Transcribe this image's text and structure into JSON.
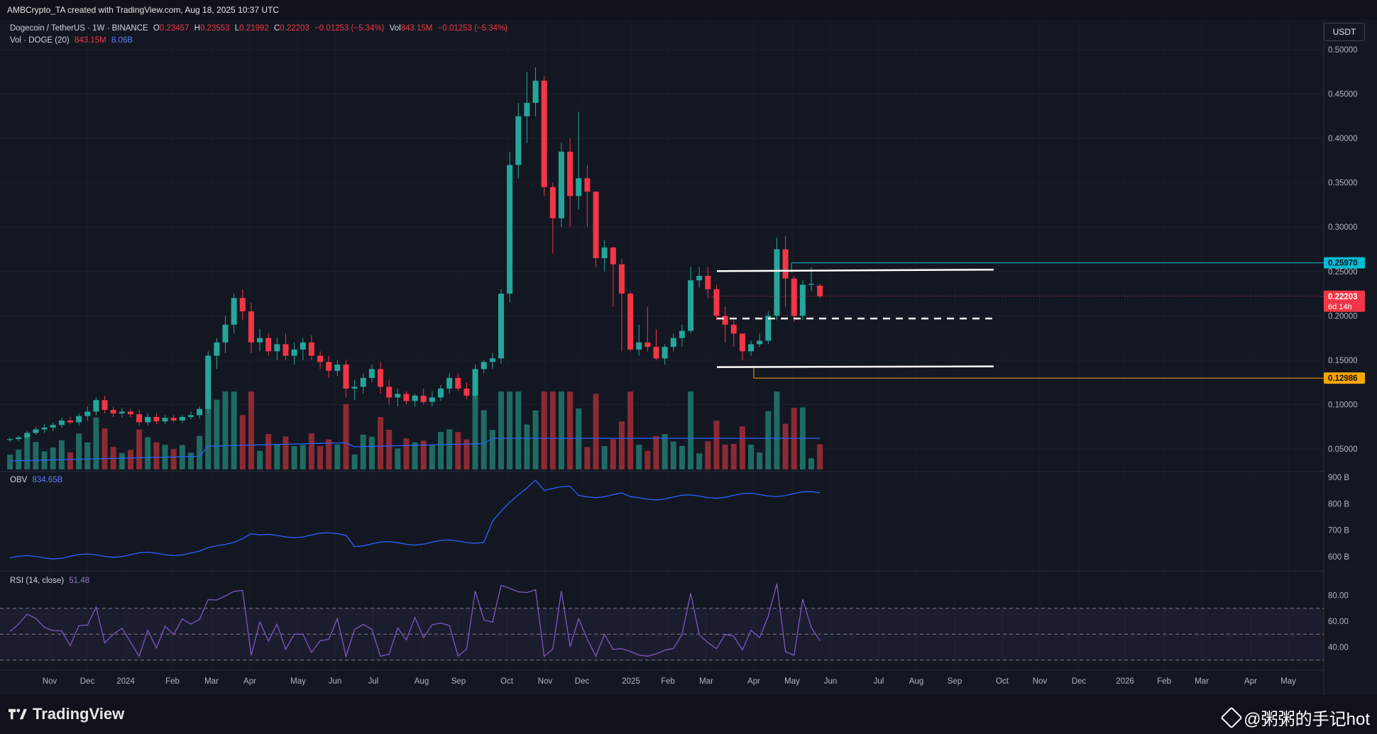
{
  "header": {
    "credit": "AMBCrypto_TA created with TradingView.com, Aug 18, 2025 10:37 UTC"
  },
  "legend": {
    "symbol": "Dogecoin / TetherUS · 1W · BINANCE",
    "o_label": "O",
    "o_val": "0.23457",
    "h_label": "H",
    "h_val": "0.23553",
    "l_label": "L",
    "l_val": "0.21992",
    "c_label": "C",
    "c_val": "0.22203",
    "change": "−0.01253 (−5.34%)",
    "vol_label": "Vol",
    "vol_val": "843.15M",
    "vol_change": "−0.01253 (−5.34%)",
    "vol_line": "Vol · DOGE (20)",
    "vol_line_v1": "843.15M",
    "vol_line_v2": "8.06B",
    "obv_label": "OBV",
    "obv_val": "834.65B",
    "rsi_label": "RSI (14, close)",
    "rsi_val": "51.48"
  },
  "toolbar": {
    "currency": "USDT"
  },
  "price_axis": {
    "labels": [
      "0.50000",
      "0.45000",
      "0.40000",
      "0.35000",
      "0.30000",
      "0.25000",
      "0.20000",
      "0.15000",
      "0.10000",
      "0.05000"
    ],
    "tag_resistance": "0.25970",
    "tag_last": "0.22203",
    "tag_countdown": "6d 14h",
    "tag_support": "0.12986"
  },
  "obv_axis": {
    "labels": [
      "900 B",
      "800 B",
      "700 B",
      "600 B"
    ]
  },
  "rsi_axis": {
    "labels": [
      "80.00",
      "60.00",
      "40.00"
    ]
  },
  "time_axis": {
    "labels": [
      "Nov",
      "Dec",
      "2024",
      "Feb",
      "Mar",
      "Apr",
      "May",
      "Jun",
      "Jul",
      "Aug",
      "Sep",
      "Oct",
      "Nov",
      "Dec",
      "2025",
      "Feb",
      "Mar",
      "Apr",
      "May",
      "Jun",
      "Jul",
      "Aug",
      "Sep",
      "Oct",
      "Nov",
      "Dec",
      "2026",
      "Feb",
      "Mar",
      "Apr",
      "May"
    ]
  },
  "branding": {
    "logo_text": "TradingView",
    "watermark": "@粥粥的手记hot"
  },
  "colors": {
    "up": "#26a69a",
    "down": "#f23645",
    "obv": "#2962ff",
    "rsi": "#7e57c2",
    "resistance_tag": "#00bcd4",
    "support_tag": "#f7a600",
    "background": "#131722"
  },
  "chart_data": {
    "type": "candlestick",
    "title": "Dogecoin / TetherUS · 1W · BINANCE",
    "ylim": [
      0.0,
      0.5
    ],
    "ohlc": [
      [
        0.06,
        0.063,
        0.058,
        0.061
      ],
      [
        0.061,
        0.065,
        0.059,
        0.063
      ],
      [
        0.063,
        0.07,
        0.061,
        0.068
      ],
      [
        0.068,
        0.075,
        0.066,
        0.072
      ],
      [
        0.072,
        0.078,
        0.068,
        0.074
      ],
      [
        0.074,
        0.08,
        0.07,
        0.077
      ],
      [
        0.077,
        0.085,
        0.074,
        0.082
      ],
      [
        0.082,
        0.086,
        0.078,
        0.08
      ],
      [
        0.08,
        0.09,
        0.076,
        0.087
      ],
      [
        0.087,
        0.098,
        0.082,
        0.092
      ],
      [
        0.092,
        0.108,
        0.088,
        0.105
      ],
      [
        0.105,
        0.11,
        0.09,
        0.094
      ],
      [
        0.094,
        0.098,
        0.086,
        0.09
      ],
      [
        0.09,
        0.096,
        0.085,
        0.092
      ],
      [
        0.092,
        0.095,
        0.086,
        0.089
      ],
      [
        0.089,
        0.094,
        0.076,
        0.08
      ],
      [
        0.08,
        0.09,
        0.076,
        0.086
      ],
      [
        0.086,
        0.09,
        0.078,
        0.081
      ],
      [
        0.081,
        0.088,
        0.078,
        0.085
      ],
      [
        0.085,
        0.088,
        0.08,
        0.082
      ],
      [
        0.082,
        0.088,
        0.079,
        0.086
      ],
      [
        0.086,
        0.092,
        0.083,
        0.088
      ],
      [
        0.088,
        0.098,
        0.084,
        0.095
      ],
      [
        0.095,
        0.16,
        0.09,
        0.155
      ],
      [
        0.155,
        0.175,
        0.14,
        0.17
      ],
      [
        0.17,
        0.2,
        0.158,
        0.19
      ],
      [
        0.19,
        0.225,
        0.18,
        0.22
      ],
      [
        0.22,
        0.23,
        0.195,
        0.205
      ],
      [
        0.205,
        0.215,
        0.158,
        0.17
      ],
      [
        0.17,
        0.185,
        0.16,
        0.175
      ],
      [
        0.175,
        0.18,
        0.155,
        0.16
      ],
      [
        0.16,
        0.175,
        0.15,
        0.168
      ],
      [
        0.168,
        0.18,
        0.15,
        0.155
      ],
      [
        0.155,
        0.17,
        0.145,
        0.162
      ],
      [
        0.162,
        0.175,
        0.15,
        0.17
      ],
      [
        0.17,
        0.178,
        0.15,
        0.155
      ],
      [
        0.155,
        0.16,
        0.14,
        0.148
      ],
      [
        0.148,
        0.155,
        0.13,
        0.138
      ],
      [
        0.138,
        0.15,
        0.132,
        0.145
      ],
      [
        0.145,
        0.15,
        0.108,
        0.118
      ],
      [
        0.118,
        0.128,
        0.105,
        0.12
      ],
      [
        0.12,
        0.135,
        0.112,
        0.13
      ],
      [
        0.13,
        0.145,
        0.125,
        0.14
      ],
      [
        0.14,
        0.148,
        0.112,
        0.12
      ],
      [
        0.12,
        0.128,
        0.1,
        0.108
      ],
      [
        0.108,
        0.118,
        0.098,
        0.112
      ],
      [
        0.112,
        0.115,
        0.1,
        0.104
      ],
      [
        0.104,
        0.112,
        0.098,
        0.11
      ],
      [
        0.11,
        0.118,
        0.1,
        0.103
      ],
      [
        0.103,
        0.115,
        0.098,
        0.108
      ],
      [
        0.108,
        0.122,
        0.104,
        0.118
      ],
      [
        0.118,
        0.135,
        0.112,
        0.13
      ],
      [
        0.13,
        0.135,
        0.115,
        0.118
      ],
      [
        0.118,
        0.125,
        0.106,
        0.11
      ],
      [
        0.11,
        0.145,
        0.108,
        0.14
      ],
      [
        0.14,
        0.15,
        0.135,
        0.148
      ],
      [
        0.148,
        0.158,
        0.14,
        0.152
      ],
      [
        0.152,
        0.23,
        0.146,
        0.225
      ],
      [
        0.225,
        0.385,
        0.215,
        0.37
      ],
      [
        0.37,
        0.44,
        0.355,
        0.425
      ],
      [
        0.425,
        0.475,
        0.395,
        0.44
      ],
      [
        0.44,
        0.48,
        0.425,
        0.465
      ],
      [
        0.465,
        0.47,
        0.335,
        0.345
      ],
      [
        0.345,
        0.35,
        0.27,
        0.31
      ],
      [
        0.31,
        0.395,
        0.3,
        0.385
      ],
      [
        0.385,
        0.4,
        0.3,
        0.335
      ],
      [
        0.335,
        0.43,
        0.32,
        0.355
      ],
      [
        0.355,
        0.37,
        0.3,
        0.34
      ],
      [
        0.34,
        0.34,
        0.255,
        0.265
      ],
      [
        0.265,
        0.285,
        0.25,
        0.277
      ],
      [
        0.277,
        0.278,
        0.21,
        0.258
      ],
      [
        0.258,
        0.264,
        0.16,
        0.225
      ],
      [
        0.225,
        0.227,
        0.16,
        0.162
      ],
      [
        0.162,
        0.19,
        0.155,
        0.17
      ],
      [
        0.17,
        0.21,
        0.16,
        0.165
      ],
      [
        0.165,
        0.185,
        0.15,
        0.152
      ],
      [
        0.152,
        0.168,
        0.145,
        0.165
      ],
      [
        0.165,
        0.18,
        0.16,
        0.175
      ],
      [
        0.175,
        0.19,
        0.165,
        0.183
      ],
      [
        0.183,
        0.255,
        0.18,
        0.24
      ],
      [
        0.24,
        0.255,
        0.232,
        0.245
      ],
      [
        0.245,
        0.255,
        0.22,
        0.23
      ],
      [
        0.23,
        0.235,
        0.195,
        0.2
      ],
      [
        0.2,
        0.21,
        0.17,
        0.19
      ],
      [
        0.19,
        0.195,
        0.165,
        0.18
      ],
      [
        0.18,
        0.18,
        0.15,
        0.16
      ],
      [
        0.16,
        0.172,
        0.155,
        0.168
      ],
      [
        0.168,
        0.18,
        0.165,
        0.172
      ],
      [
        0.172,
        0.205,
        0.168,
        0.2
      ],
      [
        0.2,
        0.288,
        0.195,
        0.275
      ],
      [
        0.275,
        0.29,
        0.21,
        0.242
      ],
      [
        0.242,
        0.245,
        0.193,
        0.2
      ],
      [
        0.2,
        0.24,
        0.195,
        0.235
      ],
      [
        0.235,
        0.255,
        0.228,
        0.236
      ],
      [
        0.234,
        0.236,
        0.22,
        0.222
      ]
    ],
    "volume_label": "Vol · DOGE (20)",
    "volume_ma20": "8.06B",
    "levels": {
      "resistance": 0.2597,
      "support": 0.12986,
      "range_top": 0.252,
      "range_mid": 0.197,
      "range_bottom": 0.143
    },
    "obv": {
      "label": "OBV",
      "last": "834.65B",
      "ylim": [
        560,
        900
      ]
    },
    "rsi": {
      "label": "RSI (14, close)",
      "last": "51.48",
      "bands": [
        70,
        50,
        30
      ],
      "ylim": [
        25,
        95
      ]
    }
  }
}
